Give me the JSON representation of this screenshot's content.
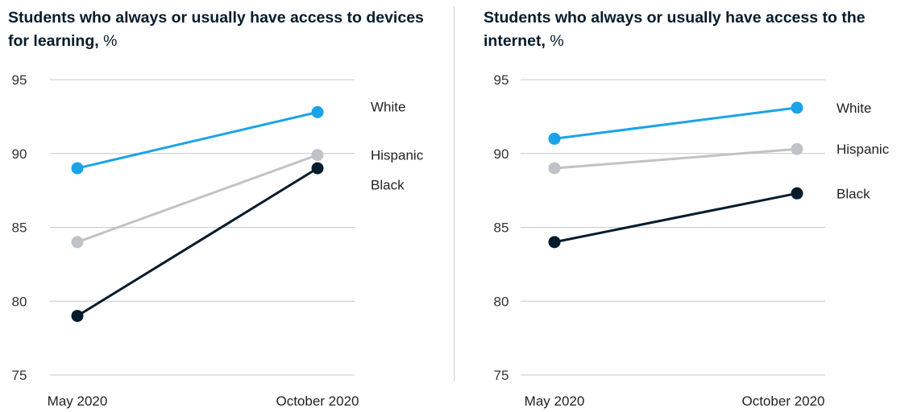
{
  "chart_data": [
    {
      "type": "line",
      "title": "Students who always or usually have access to devices for learning,",
      "unit": "%",
      "categories": [
        "May 2020",
        "October 2020"
      ],
      "ylim": [
        75,
        95
      ],
      "yticks": [
        95,
        90,
        85,
        80,
        75
      ],
      "grid": true,
      "series": [
        {
          "name": "White",
          "values": [
            89,
            92.8
          ],
          "color": "#1ba3e8"
        },
        {
          "name": "Hispanic",
          "values": [
            84,
            89.9
          ],
          "color": "#bfc3c7"
        },
        {
          "name": "Black",
          "values": [
            79,
            89
          ],
          "color": "#051c2c"
        }
      ]
    },
    {
      "type": "line",
      "title": "Students who always or usually have access to the internet,",
      "unit": "%",
      "categories": [
        "May 2020",
        "October 2020"
      ],
      "ylim": [
        75,
        95
      ],
      "yticks": [
        95,
        90,
        85,
        80,
        75
      ],
      "grid": true,
      "series": [
        {
          "name": "White",
          "values": [
            91,
            93.1
          ],
          "color": "#1ba3e8"
        },
        {
          "name": "Hispanic",
          "values": [
            89,
            90.3
          ],
          "color": "#bfc3c7"
        },
        {
          "name": "Black",
          "values": [
            84,
            87.3
          ],
          "color": "#051c2c"
        }
      ]
    }
  ]
}
